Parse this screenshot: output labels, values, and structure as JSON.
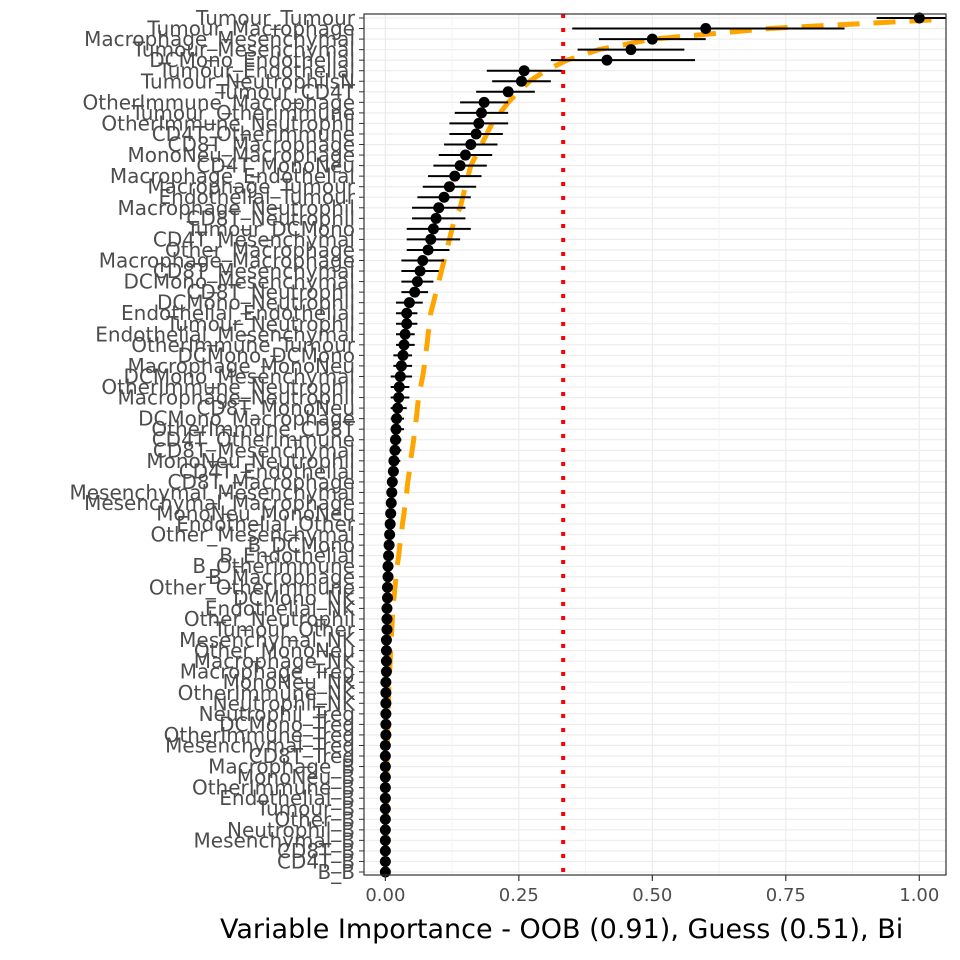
{
  "chart_data": {
    "type": "scatter",
    "xlabel": "Variable Importance - OOB (0.91), Guess (0.51), Bi",
    "ylabel": "",
    "xlim": [
      -0.04,
      1.05
    ],
    "xticks": [
      0.0,
      0.25,
      0.5,
      0.75,
      1.0
    ],
    "xtick_labels": [
      "0.00",
      "0.25",
      "0.50",
      "0.75",
      "1.00"
    ],
    "grid": true,
    "reference_line": {
      "x": 0.333,
      "color": "#ff0000",
      "style": "dotted"
    },
    "cutoff_curve": {
      "color": "#ffa500",
      "style": "dashed"
    },
    "points": [
      {
        "label": "Tumour_Tumour",
        "value": 1.0,
        "lo": 0.92,
        "hi": 1.08,
        "curve": 1.09
      },
      {
        "label": "Tumour_Macrophage",
        "value": 0.6,
        "lo": 0.35,
        "hi": 0.86,
        "curve": 0.72
      },
      {
        "label": "Macrophage_Mesenchymal",
        "value": 0.5,
        "lo": 0.4,
        "hi": 0.6,
        "curve": 0.5
      },
      {
        "label": "Tumour_Mesenchymal",
        "value": 0.46,
        "lo": 0.36,
        "hi": 0.56,
        "curve": 0.4
      },
      {
        "label": "DCMono_Endothelial",
        "value": 0.415,
        "lo": 0.31,
        "hi": 0.58,
        "curve": 0.34
      },
      {
        "label": "Tumour_Endothelial",
        "value": 0.26,
        "lo": 0.19,
        "hi": 0.33,
        "curve": 0.3
      },
      {
        "label": "Tumour_NeutrophilsN",
        "value": 0.255,
        "lo": 0.2,
        "hi": 0.31,
        "curve": 0.27
      },
      {
        "label": "Tumour_CD4T",
        "value": 0.23,
        "lo": 0.17,
        "hi": 0.28,
        "curve": 0.25
      },
      {
        "label": "OtherImmune_Macrophage",
        "value": 0.185,
        "lo": 0.14,
        "hi": 0.23,
        "curve": 0.23
      },
      {
        "label": "Tumour_Otherimmune",
        "value": 0.18,
        "lo": 0.13,
        "hi": 0.23,
        "curve": 0.215
      },
      {
        "label": "OtherImmune_Neutrophil",
        "value": 0.175,
        "lo": 0.12,
        "hi": 0.23,
        "curve": 0.2
      },
      {
        "label": "CD4T_Otherimmune",
        "value": 0.17,
        "lo": 0.12,
        "hi": 0.22,
        "curve": 0.19
      },
      {
        "label": "CD8T_Macrophage",
        "value": 0.16,
        "lo": 0.11,
        "hi": 0.21,
        "curve": 0.18
      },
      {
        "label": "MonoNeu_Macrophage",
        "value": 0.15,
        "lo": 0.1,
        "hi": 0.2,
        "curve": 0.17
      },
      {
        "label": "CD4T_MonoNeu",
        "value": 0.14,
        "lo": 0.09,
        "hi": 0.19,
        "curve": 0.16
      },
      {
        "label": "Macrophage_Endothelial",
        "value": 0.13,
        "lo": 0.08,
        "hi": 0.18,
        "curve": 0.155
      },
      {
        "label": "Macrophage_Tumour",
        "value": 0.12,
        "lo": 0.07,
        "hi": 0.17,
        "curve": 0.15
      },
      {
        "label": "Endothelial_Tumour",
        "value": 0.11,
        "lo": 0.06,
        "hi": 0.16,
        "curve": 0.145
      },
      {
        "label": "Macrophage_Neutrophil",
        "value": 0.1,
        "lo": 0.05,
        "hi": 0.15,
        "curve": 0.14
      },
      {
        "label": "CD8T_Neutrophil",
        "value": 0.095,
        "lo": 0.05,
        "hi": 0.15,
        "curve": 0.13
      },
      {
        "label": "Tumour_DCMono",
        "value": 0.09,
        "lo": 0.04,
        "hi": 0.16,
        "curve": 0.125
      },
      {
        "label": "CD4T_Mesenchymal",
        "value": 0.085,
        "lo": 0.04,
        "hi": 0.14,
        "curve": 0.12
      },
      {
        "label": "Other_Macrophage",
        "value": 0.08,
        "lo": 0.04,
        "hi": 0.12,
        "curve": 0.115
      },
      {
        "label": "Macrophage_Macrophage",
        "value": 0.07,
        "lo": 0.03,
        "hi": 0.11,
        "curve": 0.11
      },
      {
        "label": "CD8T_Mesenchymal",
        "value": 0.065,
        "lo": 0.03,
        "hi": 0.1,
        "curve": 0.105
      },
      {
        "label": "DCMono_Mesenchymal",
        "value": 0.06,
        "lo": 0.03,
        "hi": 0.09,
        "curve": 0.1
      },
      {
        "label": "CD8T_Neutrophil",
        "value": 0.055,
        "lo": 0.03,
        "hi": 0.08,
        "curve": 0.095
      },
      {
        "label": "DCMono_Neutrophil",
        "value": 0.045,
        "lo": 0.02,
        "hi": 0.07,
        "curve": 0.09
      },
      {
        "label": "Endothelial_Endothelial",
        "value": 0.04,
        "lo": 0.02,
        "hi": 0.06,
        "curve": 0.085
      },
      {
        "label": "Tumour_Neutrophil",
        "value": 0.04,
        "lo": 0.02,
        "hi": 0.06,
        "curve": 0.083
      },
      {
        "label": "Endothelial_Mesenchymal",
        "value": 0.037,
        "lo": 0.02,
        "hi": 0.055,
        "curve": 0.08
      },
      {
        "label": "OtherImmune_Tumour",
        "value": 0.035,
        "lo": 0.02,
        "hi": 0.055,
        "curve": 0.078
      },
      {
        "label": "DCMono_DCMono",
        "value": 0.033,
        "lo": 0.015,
        "hi": 0.05,
        "curve": 0.075
      },
      {
        "label": "Macrophage_MonoNeu",
        "value": 0.03,
        "lo": 0.015,
        "hi": 0.05,
        "curve": 0.073
      },
      {
        "label": "DCMono_Mesenchymal",
        "value": 0.028,
        "lo": 0.01,
        "hi": 0.05,
        "curve": 0.07
      },
      {
        "label": "OtherImmune_Neutrophil",
        "value": 0.026,
        "lo": 0.01,
        "hi": 0.045,
        "curve": 0.066
      },
      {
        "label": "Macrophage_Neutrophil",
        "value": 0.025,
        "lo": 0.01,
        "hi": 0.045,
        "curve": 0.062
      },
      {
        "label": "CD8T_MonoNeu",
        "value": 0.023,
        "lo": 0.01,
        "hi": 0.04,
        "curve": 0.06
      },
      {
        "label": "DCMono_Macrophage",
        "value": 0.021,
        "lo": 0.01,
        "hi": 0.035,
        "curve": 0.058
      },
      {
        "label": "OtherImmune_CD8T",
        "value": 0.02,
        "lo": 0.01,
        "hi": 0.035,
        "curve": 0.055
      },
      {
        "label": "CD4T_Otherimmune",
        "value": 0.019,
        "lo": 0.01,
        "hi": 0.03,
        "curve": 0.053
      },
      {
        "label": "CD8T_Mesenchymal",
        "value": 0.018,
        "lo": 0.008,
        "hi": 0.03,
        "curve": 0.05
      },
      {
        "label": "MonoNeu_Neutrophil",
        "value": 0.016,
        "lo": 0.008,
        "hi": 0.028,
        "curve": 0.047
      },
      {
        "label": "CD4T_Endothelial",
        "value": 0.015,
        "lo": 0.008,
        "hi": 0.025,
        "curve": 0.045
      },
      {
        "label": "CD8T_Macrophage",
        "value": 0.013,
        "lo": 0.006,
        "hi": 0.022,
        "curve": 0.042
      },
      {
        "label": "Mesenchymal_Mesenchymal",
        "value": 0.012,
        "lo": 0.005,
        "hi": 0.02,
        "curve": 0.04
      },
      {
        "label": "Mesenchymal_Macrophage",
        "value": 0.011,
        "lo": 0.005,
        "hi": 0.02,
        "curve": 0.037
      },
      {
        "label": "MonoNeu_MonoNeu",
        "value": 0.01,
        "lo": 0.005,
        "hi": 0.018,
        "curve": 0.035
      },
      {
        "label": "Endothelial_Other",
        "value": 0.009,
        "lo": 0.004,
        "hi": 0.015,
        "curve": 0.032
      },
      {
        "label": "Other_Mesenchymal",
        "value": 0.008,
        "lo": 0.004,
        "hi": 0.013,
        "curve": 0.03
      },
      {
        "label": "B_DCMono",
        "value": 0.007,
        "lo": 0.003,
        "hi": 0.012,
        "curve": 0.027
      },
      {
        "label": "B_Endothelial",
        "value": 0.006,
        "lo": 0.003,
        "hi": 0.01,
        "curve": 0.025
      },
      {
        "label": "B_Otherimmune",
        "value": 0.005,
        "lo": 0.002,
        "hi": 0.009,
        "curve": 0.022
      },
      {
        "label": "B_Macrophage",
        "value": 0.005,
        "lo": 0.002,
        "hi": 0.008,
        "curve": 0.02
      },
      {
        "label": "Other_OtherImmune",
        "value": 0.004,
        "lo": 0.002,
        "hi": 0.007,
        "curve": 0.018
      },
      {
        "label": "DCMono_NK",
        "value": 0.004,
        "lo": 0.002,
        "hi": 0.006,
        "curve": 0.016
      },
      {
        "label": "Endothelial_NK",
        "value": 0.003,
        "lo": 0.001,
        "hi": 0.005,
        "curve": 0.014
      },
      {
        "label": "Other_Neutrophil",
        "value": 0.003,
        "lo": 0.001,
        "hi": 0.005,
        "curve": 0.013
      },
      {
        "label": "Tumour_Other",
        "value": 0.003,
        "lo": 0.001,
        "hi": 0.005,
        "curve": 0.012
      },
      {
        "label": "Mesenchymal_NK",
        "value": 0.002,
        "lo": 0.001,
        "hi": 0.004,
        "curve": 0.011
      },
      {
        "label": "Other_MonoNeu",
        "value": 0.002,
        "lo": 0.001,
        "hi": 0.004,
        "curve": 0.01
      },
      {
        "label": "Macrophage_NK",
        "value": 0.002,
        "lo": 0.001,
        "hi": 0.004,
        "curve": 0.009
      },
      {
        "label": "Macrophage_Treg",
        "value": 0.002,
        "lo": 0.001,
        "hi": 0.003,
        "curve": 0.008
      },
      {
        "label": "MonoNeu_NK",
        "value": 0.001,
        "lo": 0.0,
        "hi": 0.003,
        "curve": 0.007
      },
      {
        "label": "OtherImmune_NK",
        "value": 0.001,
        "lo": 0.0,
        "hi": 0.003,
        "curve": 0.006
      },
      {
        "label": "Neutrophil_NK",
        "value": 0.001,
        "lo": 0.0,
        "hi": 0.002,
        "curve": 0.006
      },
      {
        "label": "Neutrophil_Treg",
        "value": 0.001,
        "lo": 0.0,
        "hi": 0.002,
        "curve": 0.005
      },
      {
        "label": "DCMono_Treg",
        "value": 0.001,
        "lo": 0.0,
        "hi": 0.002,
        "curve": 0.005
      },
      {
        "label": "OtherImmune_Treg",
        "value": 0.001,
        "lo": 0.0,
        "hi": 0.002,
        "curve": 0.004
      },
      {
        "label": "Mesenchymal_Treg",
        "value": 0.0,
        "lo": 0.0,
        "hi": 0.002,
        "curve": 0.004
      },
      {
        "label": "CD8T_Treg",
        "value": 0.0,
        "lo": 0.0,
        "hi": 0.001,
        "curve": 0.003
      },
      {
        "label": "Macrophage_B",
        "value": 0.0,
        "lo": 0.0,
        "hi": 0.001,
        "curve": 0.003
      },
      {
        "label": "MonoNeu_B",
        "value": 0.0,
        "lo": 0.0,
        "hi": 0.001,
        "curve": 0.003
      },
      {
        "label": "OtherImmune_B",
        "value": 0.0,
        "lo": 0.0,
        "hi": 0.001,
        "curve": 0.002
      },
      {
        "label": "Endothelial_B",
        "value": 0.0,
        "lo": 0.0,
        "hi": 0.001,
        "curve": 0.002
      },
      {
        "label": "Tumour_B",
        "value": 0.0,
        "lo": 0.0,
        "hi": 0.001,
        "curve": 0.002
      },
      {
        "label": "Other_B",
        "value": 0.0,
        "lo": 0.0,
        "hi": 0.001,
        "curve": 0.002
      },
      {
        "label": "Neutrophil_B",
        "value": 0.0,
        "lo": 0.0,
        "hi": 0.001,
        "curve": 0.001
      },
      {
        "label": "Mesenchymal_B",
        "value": 0.0,
        "lo": 0.0,
        "hi": 0.001,
        "curve": 0.001
      },
      {
        "label": "CD8T_B",
        "value": 0.0,
        "lo": 0.0,
        "hi": 0.001,
        "curve": 0.001
      },
      {
        "label": "CD4T_B",
        "value": 0.0,
        "lo": 0.0,
        "hi": 0.001,
        "curve": 0.001
      },
      {
        "label": "B_B",
        "value": 0.0,
        "lo": 0.0,
        "hi": 0.001,
        "curve": 0.001
      }
    ]
  }
}
